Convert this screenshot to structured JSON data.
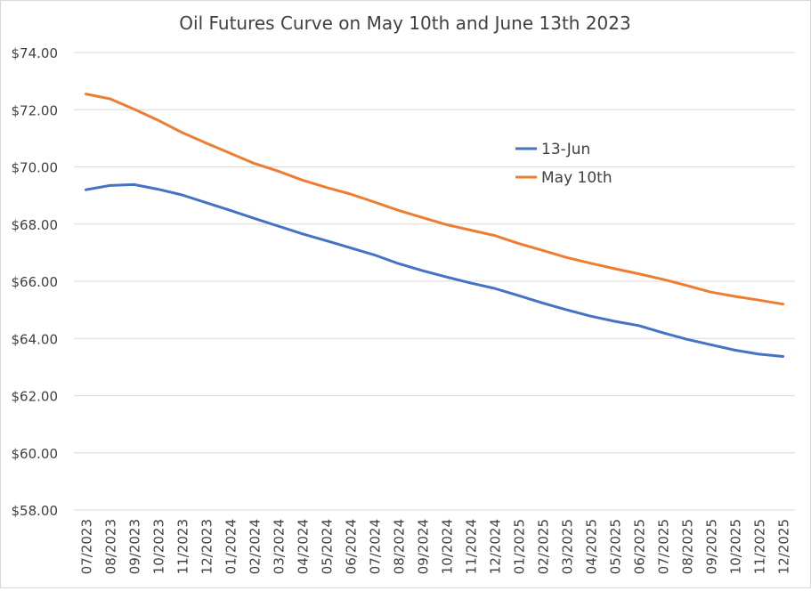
{
  "chart_data": {
    "type": "line",
    "title": "Oil Futures Curve on May 10th and June 13th 2023",
    "xlabel": "",
    "ylabel": "",
    "ylim": [
      58,
      74
    ],
    "yticks": [
      "$58.00",
      "$60.00",
      "$62.00",
      "$64.00",
      "$66.00",
      "$68.00",
      "$70.00",
      "$72.00",
      "$74.00"
    ],
    "grid": true,
    "legend_position": "upper-right-inside",
    "categories": [
      "07/2023",
      "08/2023",
      "09/2023",
      "10/2023",
      "11/2023",
      "12/2023",
      "01/2024",
      "02/2024",
      "03/2024",
      "04/2024",
      "05/2024",
      "06/2024",
      "07/2024",
      "08/2024",
      "09/2024",
      "10/2024",
      "11/2024",
      "12/2024",
      "01/2025",
      "02/2025",
      "03/2025",
      "04/2025",
      "05/2025",
      "06/2025",
      "07/2025",
      "08/2025",
      "09/2025",
      "10/2025",
      "11/2025",
      "12/2025"
    ],
    "series": [
      {
        "name": "13-Jun",
        "color": "#4472c4",
        "values": [
          69.2,
          69.35,
          69.38,
          69.22,
          69.02,
          68.75,
          68.48,
          68.2,
          67.93,
          67.66,
          67.42,
          67.17,
          66.92,
          66.62,
          66.37,
          66.15,
          65.94,
          65.75,
          65.5,
          65.24,
          65.0,
          64.78,
          64.6,
          64.45,
          64.2,
          63.97,
          63.78,
          63.59,
          63.45,
          63.37
        ]
      },
      {
        "name": "May 10th",
        "color": "#ed7d31",
        "values": [
          72.55,
          72.38,
          72.02,
          71.63,
          71.2,
          70.83,
          70.48,
          70.12,
          69.85,
          69.54,
          69.28,
          69.05,
          68.77,
          68.48,
          68.23,
          67.98,
          67.79,
          67.6,
          67.32,
          67.08,
          66.83,
          66.63,
          66.44,
          66.26,
          66.07,
          65.85,
          65.62,
          65.47,
          65.34,
          65.2
        ]
      }
    ]
  }
}
